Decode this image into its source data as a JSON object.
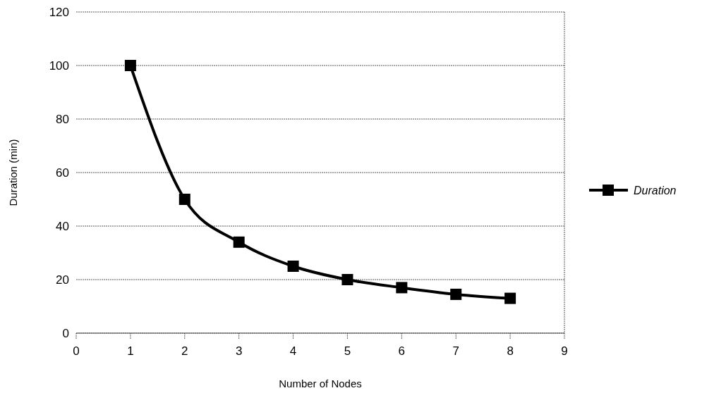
{
  "chart_data": {
    "type": "line",
    "xlabel": "Number of Nodes",
    "ylabel": "Duration (min)",
    "x": [
      1,
      2,
      3,
      4,
      5,
      6,
      7,
      8
    ],
    "series": [
      {
        "name": "Duration",
        "color": "#000000",
        "values": [
          100,
          50,
          34,
          25,
          20,
          17,
          14.5,
          13
        ]
      }
    ],
    "xlim": [
      0,
      9
    ],
    "xticks": [
      0,
      1,
      2,
      3,
      4,
      5,
      6,
      7,
      8,
      9
    ],
    "ylim": [
      0,
      120
    ],
    "yticks": [
      0,
      20,
      40,
      60,
      80,
      100,
      120
    ],
    "grid": "y",
    "legend": "right",
    "marker": "square",
    "line_style": "solid"
  }
}
